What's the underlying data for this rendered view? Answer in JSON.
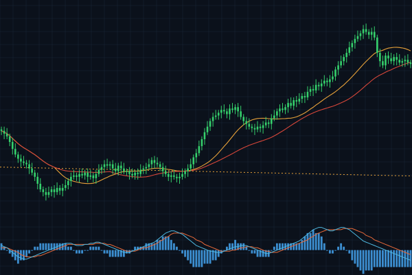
{
  "theme": {
    "background": "#0b111b",
    "grid": "#182636",
    "up_candle": "#35d06c",
    "down_candle": "#35d06c",
    "ma_fast": "#e8a23a",
    "ma_slow": "#d8473a",
    "reference_line": "#e8a23a",
    "macd_line": "#4fb8e0",
    "signal_line": "#e86a3a",
    "histogram": "#3c8ed0"
  },
  "chart_data": [
    {
      "type": "candlestick",
      "title": "",
      "xlabel": "",
      "ylabel": "",
      "x": [
        1,
        2,
        3,
        4,
        5,
        6,
        7,
        8,
        9,
        10,
        11,
        12,
        13,
        14,
        15,
        16,
        17,
        18,
        19,
        20,
        21,
        22,
        23,
        24,
        25,
        26,
        27,
        28,
        29,
        30,
        31,
        32,
        33,
        34,
        35,
        36,
        37,
        38,
        39,
        40,
        41,
        42,
        43,
        44,
        45,
        46,
        47,
        48,
        49,
        50,
        51,
        52,
        53,
        54,
        55,
        56,
        57,
        58,
        59,
        60,
        61,
        62,
        63,
        64,
        65,
        66,
        67,
        68,
        69,
        70,
        71,
        72,
        73,
        74,
        75,
        76,
        77,
        78,
        79,
        80,
        81,
        82,
        83,
        84,
        85,
        86,
        87,
        88,
        89,
        90,
        91,
        92,
        93,
        94,
        95,
        96,
        97,
        98,
        99,
        100,
        101,
        102,
        103,
        104,
        105,
        106,
        107,
        108,
        109,
        110,
        111,
        112,
        113,
        114,
        115,
        116,
        117,
        118,
        119,
        120,
        121,
        122,
        123,
        124,
        125,
        126,
        127,
        128,
        129,
        130,
        131,
        132,
        133,
        134,
        135,
        136,
        137,
        138,
        139,
        140,
        141,
        142,
        143,
        144,
        145,
        146,
        147,
        148
      ],
      "close": [
        71,
        69,
        67,
        63,
        58,
        54,
        51,
        49,
        48,
        47,
        44,
        41,
        38,
        33,
        29,
        27,
        25,
        27,
        29,
        27,
        30,
        28,
        30,
        32,
        35,
        38,
        39,
        38,
        40,
        39,
        41,
        38,
        39,
        37,
        40,
        43,
        45,
        47,
        46,
        47,
        44,
        42,
        46,
        44,
        42,
        42,
        40,
        39,
        41,
        40,
        43,
        44,
        45,
        47,
        50,
        48,
        47,
        45,
        42,
        40,
        38,
        39,
        38,
        37,
        38,
        40,
        42,
        44,
        47,
        52,
        55,
        60,
        65,
        70,
        74,
        78,
        81,
        82,
        84,
        86,
        85,
        83,
        87,
        86,
        88,
        85,
        81,
        78,
        76,
        74,
        73,
        72,
        74,
        73,
        75,
        77,
        76,
        80,
        82,
        85,
        87,
        86,
        88,
        91,
        89,
        93,
        92,
        94,
        96,
        95,
        99,
        101,
        100,
        104,
        103,
        105,
        107,
        106,
        108,
        110,
        115,
        118,
        121,
        124,
        127,
        131,
        134,
        137,
        139,
        141,
        144,
        142,
        140,
        142,
        138,
        127,
        121,
        118,
        125,
        123,
        121,
        124,
        122,
        120,
        121,
        122,
        120,
        119
      ],
      "ylim": [
        0,
        160
      ],
      "moving_averages": [
        {
          "window": 20,
          "color_key": "ma_fast"
        },
        {
          "window": 40,
          "color_key": "ma_slow"
        }
      ],
      "reference_level": 44,
      "grid": true,
      "legend": "none"
    },
    {
      "type": "macd",
      "title": "",
      "xlabel": "",
      "ylabel": "",
      "x": [
        1,
        2,
        3,
        4,
        5,
        6,
        7,
        8,
        9,
        10,
        11,
        12,
        13,
        14,
        15,
        16,
        17,
        18,
        19,
        20,
        21,
        22,
        23,
        24,
        25,
        26,
        27,
        28,
        29,
        30,
        31,
        32,
        33,
        34,
        35,
        36,
        37,
        38,
        39,
        40,
        41,
        42,
        43,
        44,
        45,
        46,
        47,
        48,
        49,
        50,
        51,
        52,
        53,
        54,
        55,
        56,
        57,
        58,
        59,
        60,
        61,
        62,
        63,
        64,
        65,
        66,
        67,
        68,
        69,
        70,
        71,
        72,
        73,
        74,
        75,
        76,
        77,
        78,
        79,
        80,
        81,
        82,
        83,
        84,
        85,
        86,
        87,
        88,
        89,
        90,
        91,
        92,
        93,
        94,
        95,
        96,
        97,
        98,
        99,
        100,
        101,
        102,
        103,
        104,
        105,
        106,
        107,
        108,
        109,
        110,
        111,
        112,
        113,
        114,
        115,
        116,
        117,
        118,
        119,
        120,
        121,
        122,
        123,
        124,
        125,
        126,
        127,
        128,
        129,
        130,
        131,
        132,
        133,
        134,
        135,
        136,
        137,
        138,
        139,
        140,
        141,
        142,
        143,
        144,
        145,
        146,
        147,
        148
      ],
      "macd": [
        4,
        3,
        2,
        0,
        -2,
        -4,
        -6,
        -7,
        -8,
        -8,
        -7,
        -6,
        -5,
        -4,
        -3,
        -2,
        -1,
        0,
        1,
        2,
        3,
        4,
        5,
        6,
        6,
        6,
        5,
        4,
        4,
        4,
        5,
        5,
        6,
        6,
        7,
        7,
        6,
        5,
        4,
        3,
        2,
        1,
        0,
        -1,
        -2,
        -2,
        -2,
        -1,
        0,
        1,
        2,
        3,
        4,
        5,
        6,
        7,
        9,
        11,
        13,
        15,
        16,
        17,
        17,
        16,
        15,
        14,
        12,
        10,
        8,
        6,
        4,
        3,
        2,
        1,
        0,
        -1,
        -1,
        -2,
        -2,
        -2,
        -1,
        0,
        1,
        2,
        3,
        3,
        4,
        4,
        4,
        3,
        2,
        1,
        0,
        -1,
        -2,
        -3,
        -3,
        -2,
        -1,
        0,
        1,
        2,
        3,
        4,
        5,
        6,
        7,
        8,
        10,
        12,
        14,
        16,
        18,
        19,
        20,
        20,
        19,
        18,
        17,
        17,
        18,
        19,
        20,
        20,
        19,
        18,
        16,
        14,
        12,
        10,
        8,
        7,
        6,
        5,
        4,
        3,
        2,
        1,
        0,
        -1,
        -2,
        -3,
        -4,
        -5,
        -6,
        -7,
        -8,
        -9
      ],
      "signal": [
        2,
        2,
        2,
        1,
        0,
        -1,
        -2,
        -4,
        -5,
        -6,
        -6,
        -6,
        -6,
        -5,
        -5,
        -4,
        -3,
        -2,
        -1,
        0,
        1,
        2,
        3,
        4,
        5,
        5,
        5,
        5,
        5,
        5,
        5,
        5,
        5,
        5,
        6,
        6,
        6,
        6,
        5,
        5,
        4,
        3,
        2,
        1,
        0,
        -1,
        -1,
        -1,
        -1,
        0,
        1,
        2,
        2,
        3,
        4,
        5,
        6,
        8,
        9,
        11,
        12,
        14,
        15,
        15,
        15,
        15,
        14,
        13,
        12,
        11,
        9,
        8,
        7,
        5,
        4,
        3,
        2,
        1,
        0,
        -1,
        -1,
        -1,
        -1,
        0,
        0,
        1,
        2,
        2,
        3,
        3,
        3,
        2,
        2,
        1,
        0,
        -1,
        -1,
        -2,
        -2,
        -2,
        -1,
        0,
        1,
        2,
        3,
        4,
        5,
        6,
        7,
        8,
        9,
        11,
        12,
        14,
        15,
        16,
        17,
        18,
        18,
        18,
        18,
        18,
        18,
        19,
        19,
        19,
        19,
        18,
        17,
        16,
        15,
        13,
        12,
        11,
        9,
        8,
        7,
        6,
        5,
        4,
        3,
        2,
        1,
        0,
        -1,
        -2,
        -3,
        -4
      ],
      "ylim": [
        -22,
        24
      ],
      "grid": true,
      "legend": "none"
    }
  ]
}
